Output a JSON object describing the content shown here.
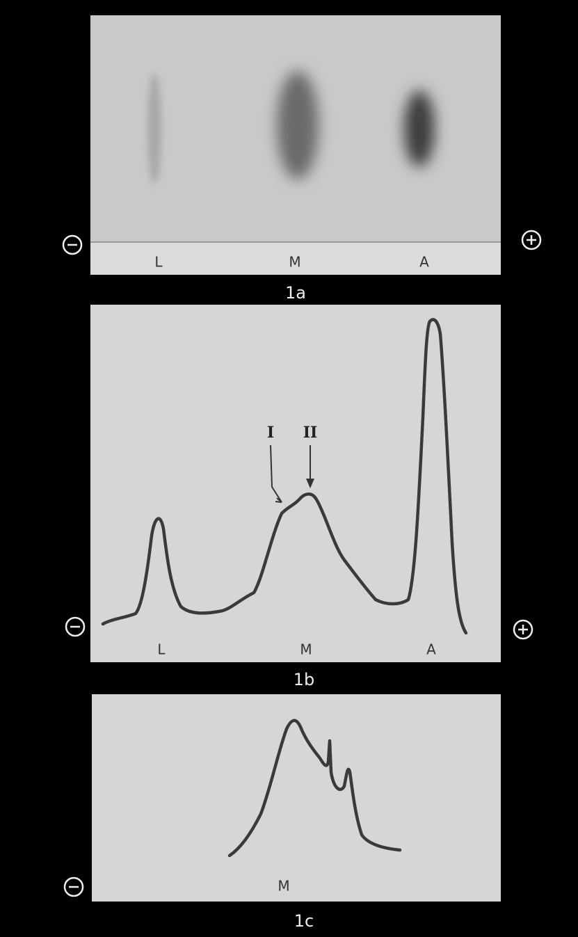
{
  "panels": [
    {
      "label": "1a",
      "lanes": [
        "L",
        "M",
        "A"
      ]
    },
    {
      "label": "1b",
      "lanes": [
        "L",
        "M",
        "A"
      ],
      "peaks": [
        "I",
        "II"
      ]
    },
    {
      "label": "1c",
      "lanes": [
        "M"
      ]
    }
  ]
}
